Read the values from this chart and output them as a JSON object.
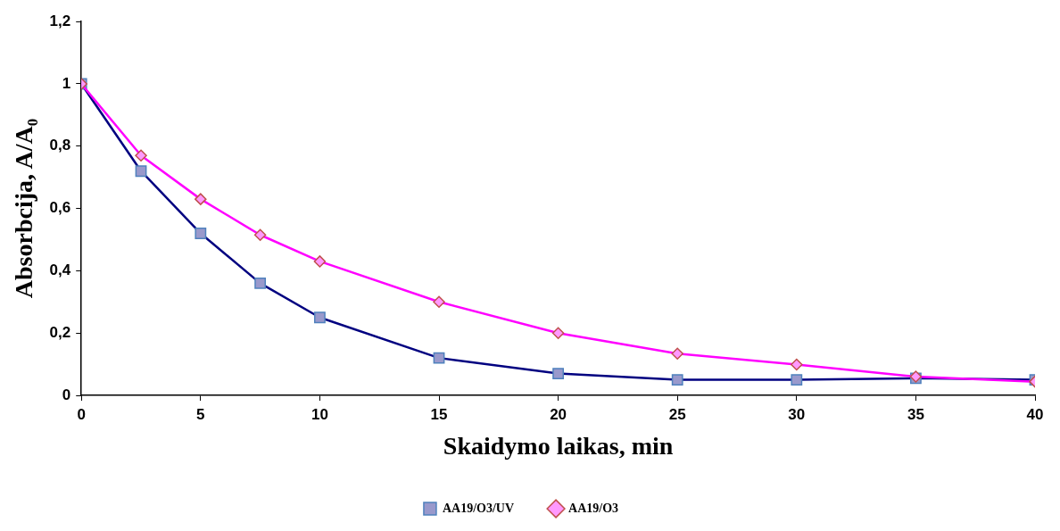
{
  "chart_data": {
    "type": "line",
    "xlabel": "Skaidymo laikas, min",
    "ylabel": "Absorbcija, A/A₀",
    "x": [
      0,
      2.5,
      5,
      7.5,
      10,
      15,
      20,
      25,
      30,
      35,
      40
    ],
    "series": [
      {
        "name": "AA19/O3/UV",
        "color": "#000080",
        "marker": "square",
        "values": [
          1,
          0.72,
          0.52,
          0.36,
          0.25,
          0.12,
          0.07,
          0.05,
          0.05,
          0.055,
          0.05
        ]
      },
      {
        "name": "AA19/O3",
        "color": "#ff00ff",
        "marker": "diamond",
        "values": [
          1,
          0.77,
          0.63,
          0.515,
          0.43,
          0.3,
          0.2,
          0.134,
          0.099,
          0.06,
          0.044
        ]
      }
    ],
    "xlim": [
      0,
      40
    ],
    "xticks": [
      0,
      5,
      10,
      15,
      20,
      25,
      30,
      35,
      40
    ],
    "ylim": [
      0,
      1.2
    ],
    "yticks": [
      0,
      {
        "value": 0.2,
        "label": "0,2"
      },
      {
        "value": 0.4,
        "label": "0,4"
      },
      {
        "value": 0.6,
        "label": "0,6"
      },
      {
        "value": 0.8,
        "label": "0,8"
      },
      1,
      {
        "value": 1.2,
        "label": "1,2"
      }
    ],
    "grid": false,
    "legend": "bottom",
    "line_style": "solid"
  }
}
